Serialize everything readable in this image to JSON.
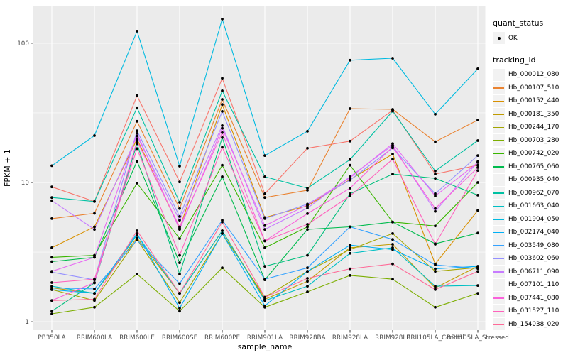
{
  "chart_data": {
    "type": "line",
    "title": "",
    "xlabel": "sample_name",
    "ylabel": "FPKM + 1",
    "yscale": "log10",
    "ylim": [
      0.87,
      186
    ],
    "y_ticks": [
      "1",
      "10",
      "100"
    ],
    "y_tick_values": [
      1,
      10,
      100
    ],
    "y_minor_values": [
      3.1623,
      31.623
    ],
    "grid": true,
    "legend_position": "right",
    "panel_bg": "#EBEBEB",
    "grid_color": "#FFFFFF",
    "tick_label_color": "#4D4D4D",
    "point_color": "#000000",
    "categories": [
      "PB350LA",
      "RRIM600LA",
      "RRIM600LE",
      "RRIM600SE",
      "RRIM600PE",
      "RRIM901LA",
      "RRIM928BA",
      "RRIM928LA",
      "RRIM928LE",
      "RRII105LA_Control",
      "RRII105LA_Stressed"
    ],
    "series": [
      {
        "name": "Hb_000012_080",
        "color": "#F8766D",
        "values": [
          9.3,
          7.3,
          42,
          10.1,
          56,
          8.3,
          17.6,
          19.8,
          33,
          11.5,
          13.3
        ]
      },
      {
        "name": "Hb_000107_510",
        "color": "#EA8331",
        "values": [
          5.5,
          6.0,
          27.5,
          6.5,
          39.5,
          7.8,
          8.8,
          33.9,
          33.5,
          19.6,
          28.1
        ]
      },
      {
        "name": "Hb_000152_440",
        "color": "#D89000",
        "values": [
          3.4,
          4.8,
          20.5,
          4.7,
          36.3,
          5.6,
          6.8,
          10.5,
          16.0,
          2.6,
          6.3
        ]
      },
      {
        "name": "Hb_000181_350",
        "color": "#C09B00",
        "values": [
          1.75,
          1.6,
          4.0,
          1.6,
          4.5,
          1.45,
          1.95,
          3.4,
          3.6,
          1.75,
          2.5
        ]
      },
      {
        "name": "Hb_000244_170",
        "color": "#A3A500",
        "values": [
          1.7,
          1.42,
          3.9,
          1.37,
          4.3,
          1.5,
          2.3,
          3.3,
          4.3,
          2.3,
          2.45
        ]
      },
      {
        "name": "Hb_000703_280",
        "color": "#7CAE00",
        "values": [
          1.14,
          1.27,
          2.2,
          1.19,
          2.44,
          1.27,
          1.64,
          2.15,
          2.02,
          1.27,
          1.6
        ]
      },
      {
        "name": "Hb_000742_020",
        "color": "#39B600",
        "values": [
          2.9,
          3.0,
          9.9,
          3.95,
          13.3,
          3.4,
          4.8,
          13.3,
          5.2,
          4.87,
          10.0
        ]
      },
      {
        "name": "Hb_000765_060",
        "color": "#00BB4E",
        "values": [
          2.7,
          2.9,
          14.2,
          2.65,
          11.0,
          2.0,
          4.6,
          4.8,
          5.2,
          3.63,
          4.33
        ]
      },
      {
        "name": "Hb_000935_040",
        "color": "#00BF7D",
        "values": [
          1.19,
          1.9,
          19.0,
          2.2,
          21.0,
          2.5,
          3.0,
          8.3,
          11.5,
          10.7,
          8.1
        ]
      },
      {
        "name": "Hb_000962_070",
        "color": "#00C1A3",
        "values": [
          7.8,
          7.3,
          34.4,
          7.2,
          45.5,
          11.0,
          9.1,
          14.6,
          32.5,
          12.1,
          20.0
        ]
      },
      {
        "name": "Hb_001663_040",
        "color": "#00BFC4",
        "values": [
          1.8,
          1.6,
          4.2,
          1.6,
          4.5,
          1.42,
          1.8,
          3.1,
          3.4,
          1.8,
          1.82
        ]
      },
      {
        "name": "Hb_001904_050",
        "color": "#00BAE0",
        "values": [
          13.2,
          21.7,
          122,
          13.1,
          149,
          15.6,
          23.3,
          75.5,
          78,
          30.9,
          65.5
        ]
      },
      {
        "name": "Hb_002174_040",
        "color": "#00B0F6",
        "values": [
          1.7,
          1.6,
          4.3,
          1.25,
          4.3,
          1.3,
          2.3,
          3.55,
          3.3,
          2.4,
          2.5
        ]
      },
      {
        "name": "Hb_003549_080",
        "color": "#35A2FF",
        "values": [
          1.75,
          1.72,
          3.86,
          1.88,
          5.36,
          2.02,
          2.44,
          4.8,
          3.9,
          2.56,
          2.41
        ]
      },
      {
        "name": "Hb_003602_060",
        "color": "#9590FF",
        "values": [
          2.27,
          2.0,
          23.5,
          5.7,
          32.4,
          5.5,
          7.0,
          10.4,
          17.7,
          8.3,
          15.6
        ]
      },
      {
        "name": "Hb_006711_090",
        "color": "#C77CFF",
        "values": [
          7.4,
          4.6,
          21.5,
          5.36,
          25.6,
          4.6,
          6.55,
          11.0,
          18.5,
          6.2,
          14.1
        ]
      },
      {
        "name": "Hb_007101_110",
        "color": "#E76BF3",
        "values": [
          2.3,
          2.9,
          22.5,
          4.6,
          24.5,
          4.9,
          6.9,
          10.8,
          19.0,
          8.0,
          13.9
        ]
      },
      {
        "name": "Hb_007441_080",
        "color": "#FA62DB",
        "values": [
          1.42,
          1.91,
          19.8,
          4.8,
          22.8,
          3.8,
          5.97,
          9.1,
          18.0,
          6.5,
          12.8
        ]
      },
      {
        "name": "Hb_031527_110",
        "color": "#FF62BC",
        "values": [
          1.91,
          2.02,
          17.5,
          3.0,
          17.9,
          3.8,
          5.0,
          8.0,
          14.7,
          3.6,
          12.2
        ]
      },
      {
        "name": "Hb_154038_020",
        "color": "#FF6A98",
        "values": [
          1.42,
          1.45,
          4.5,
          1.6,
          5.2,
          1.5,
          2.05,
          2.4,
          2.6,
          1.7,
          2.3
        ]
      }
    ],
    "legend": {
      "quant_title": "quant_status",
      "quant_items": [
        {
          "label": "OK"
        }
      ],
      "tracking_title": "tracking_id"
    }
  }
}
